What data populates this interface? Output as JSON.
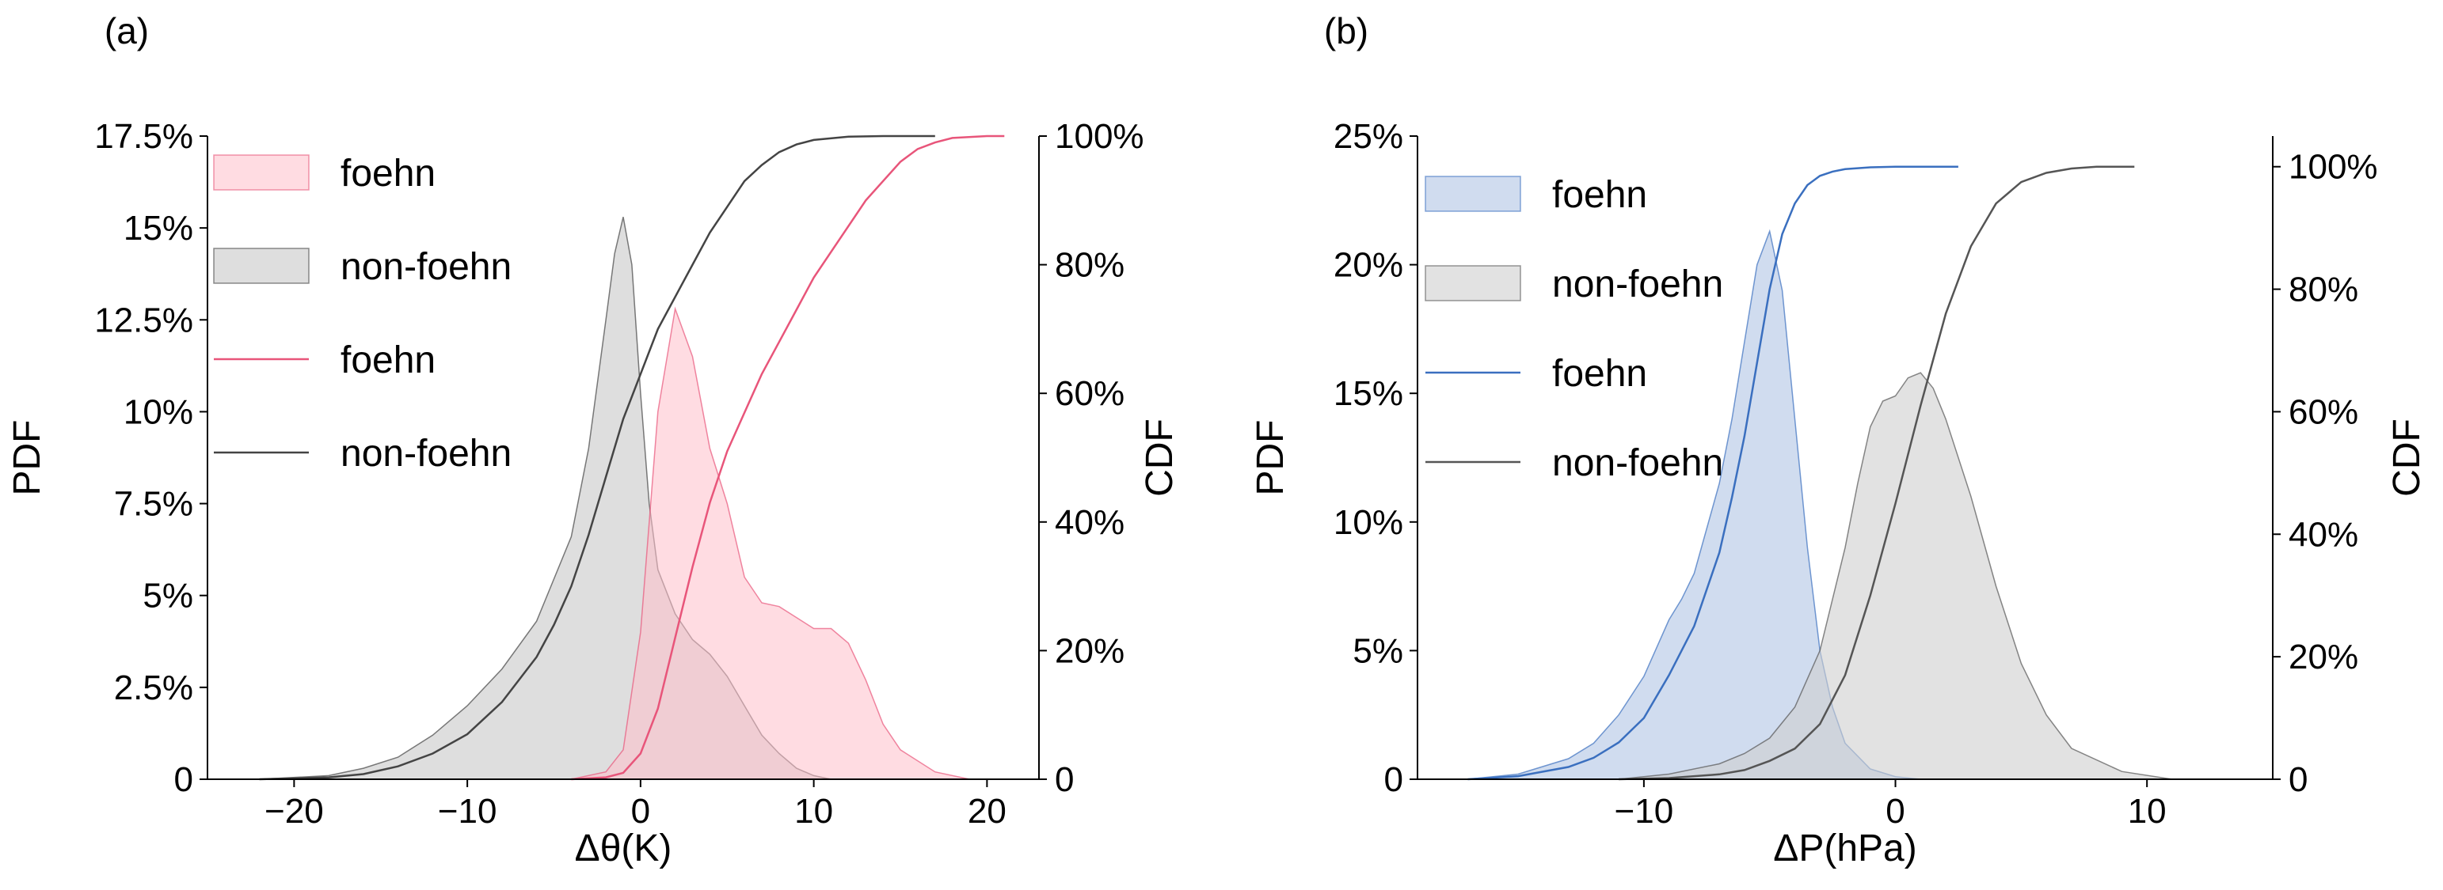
{
  "chart_data": [
    {
      "type": "area",
      "panel_label": "(a)",
      "xlabel": "Δθ(K)",
      "ylabel_left": "PDF",
      "ylabel_right": "CDF",
      "xlim": [
        -25,
        23
      ],
      "ylim_left": [
        0,
        0.175
      ],
      "ylim_right": [
        0,
        1.0
      ],
      "x_ticks": [
        -20,
        -10,
        0,
        10,
        20
      ],
      "x_tick_labels": [
        "−20",
        "−10",
        "0",
        "10",
        "20"
      ],
      "y_left_ticks": [
        0,
        0.025,
        0.05,
        0.075,
        0.1,
        0.125,
        0.15,
        0.175
      ],
      "y_left_tick_labels": [
        "0",
        "2.5%",
        "5%",
        "7.5%",
        "10%",
        "12.5%",
        "15%",
        "17.5%"
      ],
      "y_right_ticks": [
        0,
        0.2,
        0.4,
        0.6,
        0.8,
        1.0
      ],
      "y_right_tick_labels": [
        "0",
        "20%",
        "40%",
        "60%",
        "80%",
        "100%"
      ],
      "legend_position": "top-left",
      "legend": [
        "foehn",
        "non-foehn",
        "foehn",
        "non-foehn"
      ],
      "colors": {
        "foehn_fill": "#ffc0cb",
        "foehn_line": "#e8557a",
        "nonfoehn_fill": "#c8c8c8",
        "nonfoehn_line": "#444444"
      },
      "series": [
        {
          "name": "foehn",
          "kind": "pdf",
          "x": [
            -4,
            -2,
            -1,
            0,
            1,
            2,
            3,
            4,
            5,
            6,
            7,
            8,
            9,
            10,
            11,
            12,
            13,
            14,
            15,
            17,
            19
          ],
          "y": [
            0,
            0.002,
            0.008,
            0.04,
            0.1,
            0.128,
            0.115,
            0.09,
            0.075,
            0.055,
            0.048,
            0.047,
            0.044,
            0.041,
            0.041,
            0.037,
            0.027,
            0.015,
            0.008,
            0.002,
            0
          ]
        },
        {
          "name": "non-foehn",
          "kind": "pdf",
          "x": [
            -22,
            -18,
            -16,
            -14,
            -12,
            -10,
            -8,
            -6,
            -4,
            -3,
            -2,
            -1.5,
            -1,
            -0.5,
            0,
            0.5,
            1,
            2,
            3,
            4,
            5,
            6,
            7,
            8,
            9,
            10,
            11
          ],
          "y": [
            0,
            0.001,
            0.003,
            0.006,
            0.012,
            0.02,
            0.03,
            0.043,
            0.066,
            0.09,
            0.125,
            0.143,
            0.153,
            0.14,
            0.105,
            0.075,
            0.057,
            0.045,
            0.038,
            0.034,
            0.028,
            0.02,
            0.012,
            0.007,
            0.003,
            0.001,
            0
          ]
        },
        {
          "name": "foehn",
          "kind": "cdf",
          "x": [
            -4,
            -2,
            -1,
            0,
            1,
            2,
            3,
            4,
            5,
            6,
            7,
            8,
            9,
            10,
            11,
            12,
            13,
            14,
            15,
            16,
            17,
            18,
            20,
            21
          ],
          "y": [
            0,
            0.003,
            0.01,
            0.04,
            0.11,
            0.22,
            0.33,
            0.43,
            0.51,
            0.57,
            0.63,
            0.68,
            0.73,
            0.78,
            0.82,
            0.86,
            0.9,
            0.93,
            0.96,
            0.98,
            0.99,
            0.997,
            1.0,
            1.0
          ]
        },
        {
          "name": "non-foehn",
          "kind": "cdf",
          "x": [
            -22,
            -18,
            -16,
            -14,
            -12,
            -10,
            -8,
            -6,
            -5,
            -4,
            -3,
            -2,
            -1,
            0,
            1,
            2,
            3,
            4,
            5,
            6,
            7,
            8,
            9,
            10,
            12,
            14,
            17
          ],
          "y": [
            0,
            0.003,
            0.008,
            0.02,
            0.04,
            0.07,
            0.12,
            0.19,
            0.24,
            0.3,
            0.38,
            0.47,
            0.56,
            0.63,
            0.7,
            0.75,
            0.8,
            0.85,
            0.89,
            0.93,
            0.955,
            0.975,
            0.987,
            0.994,
            0.999,
            1.0,
            1.0
          ]
        }
      ]
    },
    {
      "type": "area",
      "panel_label": "(b)",
      "xlabel": "ΔP(hPa)",
      "ylabel_left": "PDF",
      "ylabel_right": "CDF",
      "xlim": [
        -19,
        15
      ],
      "ylim_left": [
        0,
        0.25
      ],
      "ylim_right": [
        0,
        1.05
      ],
      "x_ticks": [
        -10,
        0,
        10
      ],
      "x_tick_labels": [
        "−10",
        "0",
        "10"
      ],
      "y_left_ticks": [
        0,
        0.05,
        0.1,
        0.15,
        0.2,
        0.25
      ],
      "y_left_tick_labels": [
        "0",
        "5%",
        "10%",
        "15%",
        "20%",
        "25%"
      ],
      "y_right_ticks": [
        0,
        0.2,
        0.4,
        0.6,
        0.8,
        1.0
      ],
      "y_right_tick_labels": [
        "0",
        "20%",
        "40%",
        "60%",
        "80%",
        "100%"
      ],
      "legend_position": "top-left",
      "legend": [
        "foehn",
        "non-foehn",
        "foehn",
        "non-foehn"
      ],
      "colors": {
        "foehn_fill": "#aac0e2",
        "foehn_line": "#3a6fbf",
        "nonfoehn_fill": "#cfcfcf",
        "nonfoehn_line": "#555555"
      },
      "series": [
        {
          "name": "foehn",
          "kind": "pdf",
          "x": [
            -17,
            -15,
            -13,
            -12,
            -11,
            -10,
            -9,
            -8.5,
            -8,
            -7,
            -6.5,
            -6,
            -5.5,
            -5,
            -4.5,
            -4,
            -3.5,
            -3,
            -2.5,
            -2,
            -1,
            0,
            1
          ],
          "y": [
            0,
            0.002,
            0.008,
            0.014,
            0.025,
            0.04,
            0.062,
            0.07,
            0.08,
            0.115,
            0.14,
            0.17,
            0.2,
            0.213,
            0.19,
            0.14,
            0.09,
            0.05,
            0.028,
            0.014,
            0.004,
            0.001,
            0
          ]
        },
        {
          "name": "non-foehn",
          "kind": "pdf",
          "x": [
            -11,
            -9,
            -7,
            -6,
            -5,
            -4,
            -3,
            -2,
            -1.5,
            -1,
            -0.5,
            0,
            0.5,
            1,
            1.5,
            2,
            3,
            4,
            5,
            6,
            7,
            9,
            11
          ],
          "y": [
            0,
            0.002,
            0.006,
            0.01,
            0.016,
            0.028,
            0.05,
            0.09,
            0.115,
            0.137,
            0.147,
            0.149,
            0.156,
            0.158,
            0.152,
            0.14,
            0.11,
            0.075,
            0.045,
            0.025,
            0.012,
            0.003,
            0
          ]
        },
        {
          "name": "foehn",
          "kind": "cdf",
          "x": [
            -17,
            -15,
            -13,
            -12,
            -11,
            -10,
            -9,
            -8,
            -7,
            -6.5,
            -6,
            -5.5,
            -5,
            -4.5,
            -4,
            -3.5,
            -3,
            -2.5,
            -2,
            -1,
            0,
            1,
            2.5
          ],
          "y": [
            0,
            0.005,
            0.02,
            0.035,
            0.06,
            0.1,
            0.17,
            0.25,
            0.37,
            0.46,
            0.56,
            0.68,
            0.8,
            0.89,
            0.94,
            0.97,
            0.985,
            0.992,
            0.996,
            0.999,
            1.0,
            1.0,
            1.0
          ]
        },
        {
          "name": "non-foehn",
          "kind": "cdf",
          "x": [
            -11,
            -9,
            -7,
            -6,
            -5,
            -4,
            -3,
            -2,
            -1,
            0,
            1,
            2,
            3,
            4,
            5,
            6,
            7,
            8,
            9.5
          ],
          "y": [
            0,
            0.002,
            0.008,
            0.015,
            0.03,
            0.05,
            0.09,
            0.17,
            0.3,
            0.45,
            0.61,
            0.76,
            0.87,
            0.94,
            0.975,
            0.99,
            0.997,
            1.0,
            1.0
          ]
        }
      ]
    }
  ]
}
